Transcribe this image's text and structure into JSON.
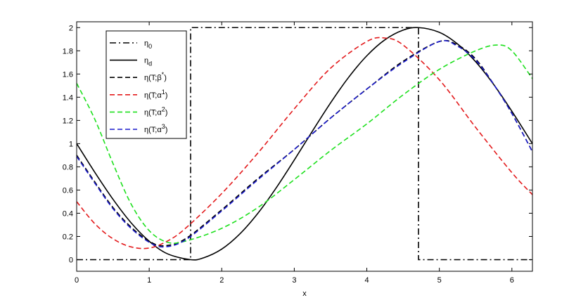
{
  "chart_data": {
    "type": "line",
    "title": "",
    "xlabel": "x",
    "ylabel": "",
    "xlim": [
      0,
      6.2832
    ],
    "ylim": [
      -0.1,
      2.05
    ],
    "grid": false,
    "legend_position": "top-left",
    "x_ticks": [
      0,
      1,
      2,
      3,
      4,
      5,
      6
    ],
    "x_tick_labels": [
      "0",
      "1",
      "2",
      "3",
      "4",
      "5",
      "6"
    ],
    "y_ticks": [
      0,
      0.2,
      0.4,
      0.6,
      0.8,
      1,
      1.2,
      1.4,
      1.6,
      1.8,
      2
    ],
    "y_tick_labels": [
      "0",
      "0.2",
      "0.4",
      "0.6",
      "0.8",
      "1",
      "1.2",
      "1.4",
      "1.6",
      "1.8",
      "2"
    ],
    "series": [
      {
        "name": "η0",
        "legend_base": "η",
        "legend_sub": "0",
        "legend_sup": "",
        "legend_tail": "",
        "color": "#000000",
        "dash": "9,4,2,4",
        "x": [
          0,
          1.5708,
          1.5708,
          4.7124,
          4.7124,
          6.2832
        ],
        "y": [
          0,
          0,
          2,
          2,
          0,
          0
        ]
      },
      {
        "name": "ηd",
        "legend_base": "η",
        "legend_sub": "d",
        "legend_sup": "",
        "legend_tail": "",
        "color": "#000000",
        "dash": "",
        "x": [
          0,
          0.25,
          0.5,
          0.75,
          1.0,
          1.25,
          1.5708,
          1.75,
          2.0,
          2.25,
          2.5,
          2.75,
          3.0,
          3.25,
          3.5,
          3.75,
          4.0,
          4.25,
          4.5,
          4.7124,
          5.0,
          5.25,
          5.5,
          5.75,
          6.0,
          6.2832
        ],
        "y": [
          1.0,
          0.753,
          0.521,
          0.318,
          0.159,
          0.051,
          0.0,
          0.016,
          0.091,
          0.222,
          0.401,
          0.618,
          0.859,
          1.108,
          1.351,
          1.572,
          1.757,
          1.895,
          1.978,
          2.0,
          1.959,
          1.859,
          1.706,
          1.509,
          1.279,
          1.0
        ]
      },
      {
        "name": "η(T;β*)",
        "legend_base": "η(T;β",
        "legend_sub": "",
        "legend_sup": "*",
        "legend_tail": ")",
        "color": "#000000",
        "dash": "7,4",
        "x": [
          0,
          0.25,
          0.5,
          0.75,
          1.0,
          1.2,
          1.5,
          2.0,
          2.5,
          3.0,
          3.5,
          4.0,
          4.5,
          5.0,
          5.25,
          5.5,
          5.75,
          6.0,
          6.2832
        ],
        "y": [
          0.9,
          0.67,
          0.45,
          0.28,
          0.16,
          0.12,
          0.18,
          0.43,
          0.7,
          0.95,
          1.22,
          1.47,
          1.71,
          1.88,
          1.85,
          1.73,
          1.51,
          1.26,
          0.93
        ]
      },
      {
        "name": "η(T;α1)",
        "legend_base": "η(T;α",
        "legend_sub": "",
        "legend_sup": "1",
        "legend_tail": ")",
        "color": "#e31a1c",
        "dash": "7,4",
        "x": [
          0,
          0.25,
          0.5,
          0.75,
          1.0,
          1.25,
          1.5,
          2.0,
          2.5,
          3.0,
          3.5,
          4.0,
          4.25,
          4.5,
          5.0,
          5.5,
          6.0,
          6.2832
        ],
        "y": [
          0.5,
          0.31,
          0.18,
          0.11,
          0.1,
          0.16,
          0.27,
          0.57,
          0.92,
          1.3,
          1.65,
          1.88,
          1.91,
          1.85,
          1.55,
          1.14,
          0.75,
          0.56
        ]
      },
      {
        "name": "η(T;α2)",
        "legend_base": "η(T;α",
        "legend_sub": "",
        "legend_sup": "2",
        "legend_tail": ")",
        "color": "#1ee01e",
        "dash": "7,4",
        "x": [
          0,
          0.25,
          0.5,
          0.75,
          1.0,
          1.25,
          1.5,
          2.0,
          2.5,
          3.0,
          3.5,
          4.0,
          4.5,
          5.0,
          5.5,
          5.8,
          6.0,
          6.2832
        ],
        "y": [
          1.52,
          1.21,
          0.83,
          0.48,
          0.25,
          0.15,
          0.16,
          0.27,
          0.45,
          0.69,
          0.94,
          1.17,
          1.42,
          1.64,
          1.8,
          1.85,
          1.8,
          1.56
        ]
      },
      {
        "name": "η(T;α3)",
        "legend_base": "η(T;α",
        "legend_sub": "",
        "legend_sup": "3",
        "legend_tail": ")",
        "color": "#1a1acc",
        "dash": "7,4",
        "x": [
          0,
          0.25,
          0.5,
          0.75,
          1.0,
          1.2,
          1.5,
          2.0,
          2.5,
          3.0,
          3.5,
          4.0,
          4.5,
          5.0,
          5.25,
          5.5,
          5.75,
          6.0,
          6.2832
        ],
        "y": [
          0.89,
          0.66,
          0.44,
          0.27,
          0.15,
          0.11,
          0.17,
          0.42,
          0.69,
          0.95,
          1.22,
          1.47,
          1.7,
          1.88,
          1.84,
          1.72,
          1.51,
          1.26,
          0.93
        ]
      }
    ]
  }
}
